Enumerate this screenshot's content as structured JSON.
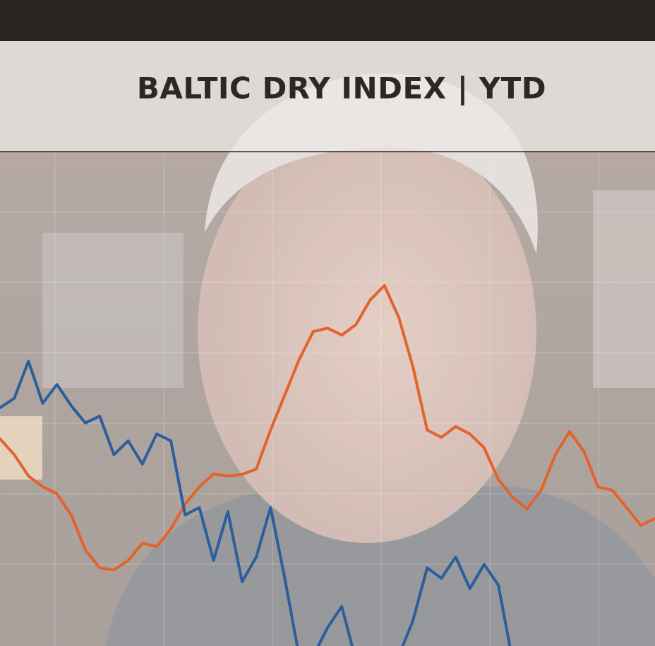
{
  "chart_data": {
    "type": "line",
    "title": "BALTIC DRY INDEX | YTD",
    "ylim": [
      0,
      100
    ],
    "series": [
      {
        "color": "#e2632c",
        "values": [
          41.9,
          38.7,
          34.4,
          32.2,
          30.8,
          26.5,
          19.4,
          15.8,
          15.4,
          17.3,
          20.8,
          20.1,
          23.7,
          28.7,
          32.2,
          34.8,
          34.4,
          34.7,
          35.8,
          43.7,
          50.8,
          57.9,
          63.6,
          64.3,
          62.9,
          65.0,
          70.0,
          72.9,
          66.5,
          56.5,
          43.7,
          42.2,
          44.4,
          42.9,
          40.1,
          33.7,
          30.1,
          27.7,
          31.5,
          38.7,
          43.4,
          39.4,
          32.2,
          31.5,
          28.0,
          24.4,
          25.8
        ]
      },
      {
        "color": "#2c5e9c",
        "values": [
          48.2,
          50.1,
          57.6,
          49.1,
          52.9,
          48.6,
          45.1,
          46.5,
          38.7,
          41.5,
          36.8,
          42.9,
          41.5,
          26.5,
          28.0,
          17.3,
          27.2,
          13.0,
          18.0,
          28.0,
          13.7,
          -2,
          -2,
          3.7,
          8.0,
          -3,
          -3,
          -3,
          -2,
          5.1,
          15.8,
          13.7,
          18.0,
          11.6,
          16.5,
          12.3,
          -3,
          null,
          null,
          null,
          null,
          null,
          null,
          null,
          null,
          null,
          null
        ]
      }
    ]
  }
}
